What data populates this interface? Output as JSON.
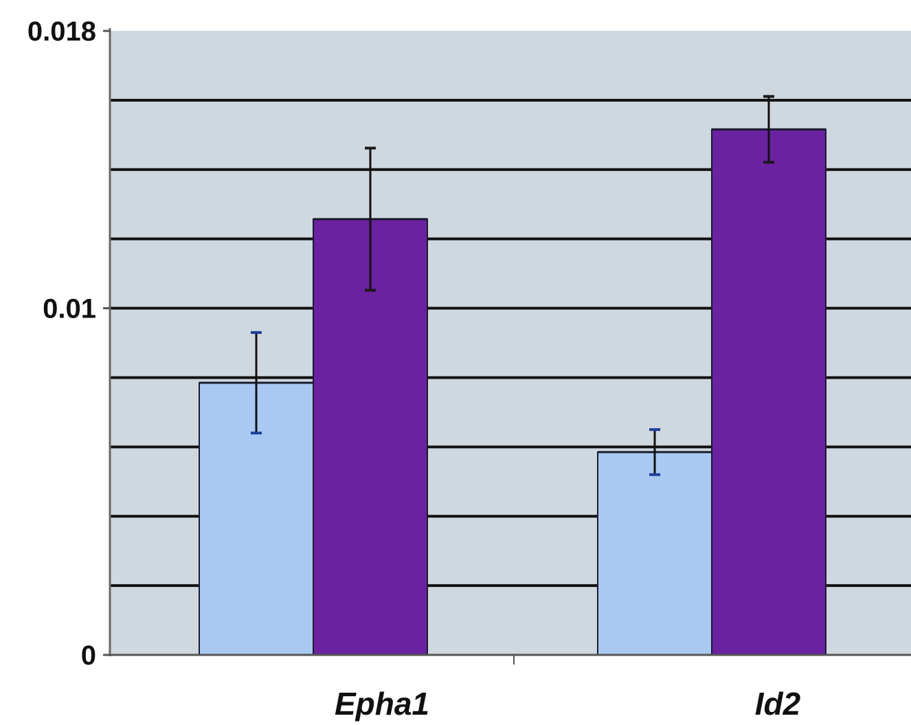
{
  "chart_data": {
    "type": "bar",
    "title": "",
    "xlabel": "",
    "ylabel": "",
    "categories": [
      "Epha1",
      "Id2"
    ],
    "series": [
      {
        "color": "#a9c9f3",
        "values": [
          0.00785,
          0.00585
        ],
        "errors": [
          0.00145,
          0.00065
        ]
      },
      {
        "color": "#6a22a0",
        "values": [
          0.01257,
          0.01516
        ],
        "errors": [
          0.00205,
          0.00095
        ]
      }
    ],
    "ylim": [
      0,
      0.018
    ],
    "yticks": [
      {
        "value": 0,
        "label": "0"
      },
      {
        "value": 0.01,
        "label": "0.01"
      },
      {
        "value": 0.018,
        "label": "0.018"
      }
    ],
    "gridlines": [
      0.002,
      0.004,
      0.006,
      0.008,
      0.01,
      0.012,
      0.014,
      0.016
    ],
    "grid": true,
    "legend": "none",
    "plot_background": "#cfd8df",
    "grid_color": "#111111"
  }
}
